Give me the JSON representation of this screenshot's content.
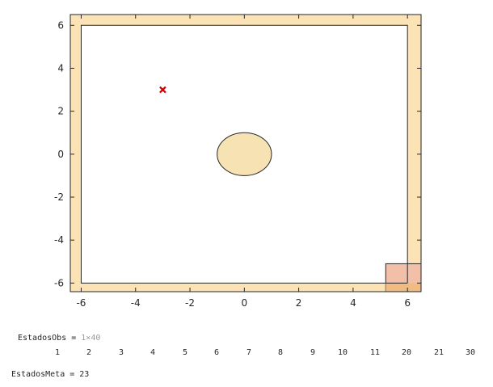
{
  "chart_data": {
    "type": "scatter",
    "xlim": [
      -6.4,
      6.5
    ],
    "ylim": [
      -6.4,
      6.5
    ],
    "x_ticks": [
      -6,
      -4,
      -2,
      0,
      2,
      4,
      6
    ],
    "y_ticks": [
      6,
      4,
      2,
      0,
      -2,
      -4,
      -6
    ],
    "grid": false,
    "outer_frame": {
      "x": [
        -6.4,
        6.5
      ],
      "y": [
        -6.4,
        6.5
      ],
      "fill": "#fbe3b6"
    },
    "inner_area": {
      "x": [
        -6,
        6
      ],
      "y": [
        -6,
        6
      ],
      "fill": "#ffffff"
    },
    "obstacle_ellipse": {
      "cx": 0,
      "cy": 0,
      "rx": 1,
      "ry": 1,
      "fill": "#f6e2b2"
    },
    "goal_square": {
      "x": [
        5.2,
        6.5
      ],
      "y": [
        -6.4,
        -5.1
      ],
      "fill": "#f2bfa8",
      "overlap_fill": "#f1bc83"
    },
    "marker": {
      "x": -3,
      "y": 3,
      "symbol": "x",
      "color": "#cc0000"
    }
  },
  "console": {
    "obs_name": "EstadosObs = ",
    "obs_size": "1×40",
    "obs_values": [
      "1",
      "2",
      "3",
      "4",
      "5",
      "6",
      "7",
      "8",
      "9",
      "10",
      "11",
      "20",
      "21",
      "30"
    ],
    "meta_line": "EstadosMeta = 23"
  }
}
